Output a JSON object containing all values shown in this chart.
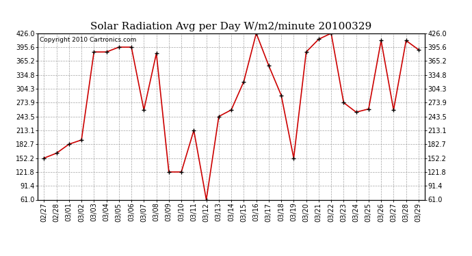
{
  "title": "Solar Radiation Avg per Day W/m2/minute 20100329",
  "copyright": "Copyright 2010 Cartronics.com",
  "labels": [
    "02/27",
    "02/28",
    "03/01",
    "03/02",
    "03/03",
    "03/04",
    "03/05",
    "03/06",
    "03/07",
    "03/08",
    "03/09",
    "03/10",
    "03/11",
    "03/12",
    "03/13",
    "03/14",
    "03/15",
    "03/16",
    "03/17",
    "03/18",
    "03/19",
    "03/20",
    "03/21",
    "03/22",
    "03/23",
    "03/24",
    "03/25",
    "03/26",
    "03/27",
    "03/28",
    "03/29"
  ],
  "values": [
    152.2,
    163.0,
    182.7,
    192.0,
    385.0,
    385.0,
    395.6,
    395.6,
    258.0,
    382.0,
    121.8,
    121.8,
    213.1,
    61.0,
    243.5,
    258.0,
    320.0,
    426.0,
    355.0,
    290.0,
    152.2,
    385.0,
    413.0,
    426.0,
    273.9,
    253.0,
    260.0,
    410.0,
    258.0,
    410.0,
    390.0
  ],
  "line_color": "#cc0000",
  "marker_color": "#000000",
  "background_color": "#ffffff",
  "plot_bg_color": "#ffffff",
  "grid_color": "#999999",
  "yticks": [
    61.0,
    91.4,
    121.8,
    152.2,
    182.7,
    213.1,
    243.5,
    273.9,
    304.3,
    334.8,
    365.2,
    395.6,
    426.0
  ],
  "ylim": [
    61.0,
    426.0
  ],
  "title_fontsize": 11,
  "tick_fontsize": 7,
  "copyright_fontsize": 6.5
}
